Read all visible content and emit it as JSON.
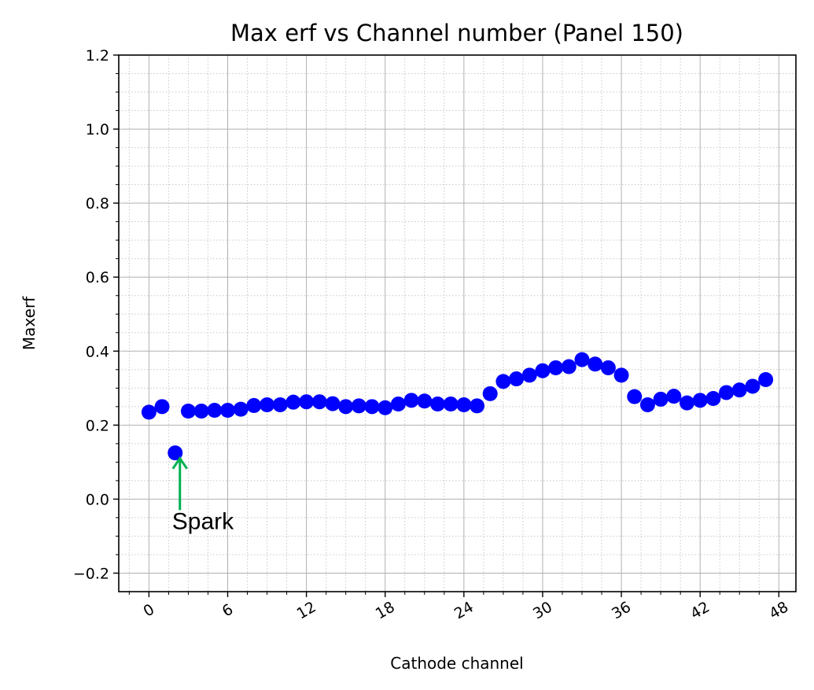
{
  "chart_data": {
    "type": "scatter",
    "title": "Max erf vs Channel number (Panel 150)",
    "xlabel": "Cathode channel",
    "ylabel": "Maxerf",
    "xlim": [
      -2.3,
      49.3
    ],
    "ylim": [
      -0.25,
      1.2
    ],
    "xticks": [
      0,
      6,
      12,
      18,
      24,
      30,
      36,
      42,
      48
    ],
    "xtick_labels": [
      "0",
      "6",
      "12",
      "18",
      "24",
      "30",
      "36",
      "42",
      "48"
    ],
    "yticks": [
      -0.2,
      0.0,
      0.2,
      0.4,
      0.6,
      0.8,
      1.0,
      1.2
    ],
    "ytick_labels": [
      "−0.2",
      "0.0",
      "0.2",
      "0.4",
      "0.6",
      "0.8",
      "1.0",
      "1.2"
    ],
    "grid": true,
    "minor_grid": true,
    "marker_color": "#0000ff",
    "series": [
      {
        "x": [
          0,
          1,
          2,
          3,
          4,
          5,
          6,
          7,
          8,
          9,
          10,
          11,
          12,
          13,
          14,
          15,
          16,
          17,
          18,
          19,
          20,
          21,
          22,
          23,
          24,
          25,
          26,
          27,
          28,
          29,
          30,
          31,
          32,
          33,
          34,
          35,
          36,
          37,
          38,
          39,
          40,
          41,
          42,
          43,
          44,
          45,
          46,
          47
        ],
        "y": [
          0.235,
          0.25,
          0.125,
          0.238,
          0.238,
          0.24,
          0.24,
          0.243,
          0.253,
          0.255,
          0.255,
          0.262,
          0.263,
          0.263,
          0.258,
          0.25,
          0.252,
          0.25,
          0.247,
          0.257,
          0.267,
          0.265,
          0.257,
          0.257,
          0.255,
          0.252,
          0.285,
          0.318,
          0.325,
          0.335,
          0.347,
          0.355,
          0.358,
          0.377,
          0.365,
          0.355,
          0.335,
          0.277,
          0.255,
          0.27,
          0.278,
          0.26,
          0.267,
          0.272,
          0.288,
          0.295,
          0.305,
          0.323
        ]
      }
    ],
    "annotations": [
      {
        "text": "Spark",
        "arrow_to": [
          2,
          0.11
        ],
        "text_at": [
          2,
          -0.06
        ],
        "arrow_color": "#00b050"
      }
    ]
  }
}
